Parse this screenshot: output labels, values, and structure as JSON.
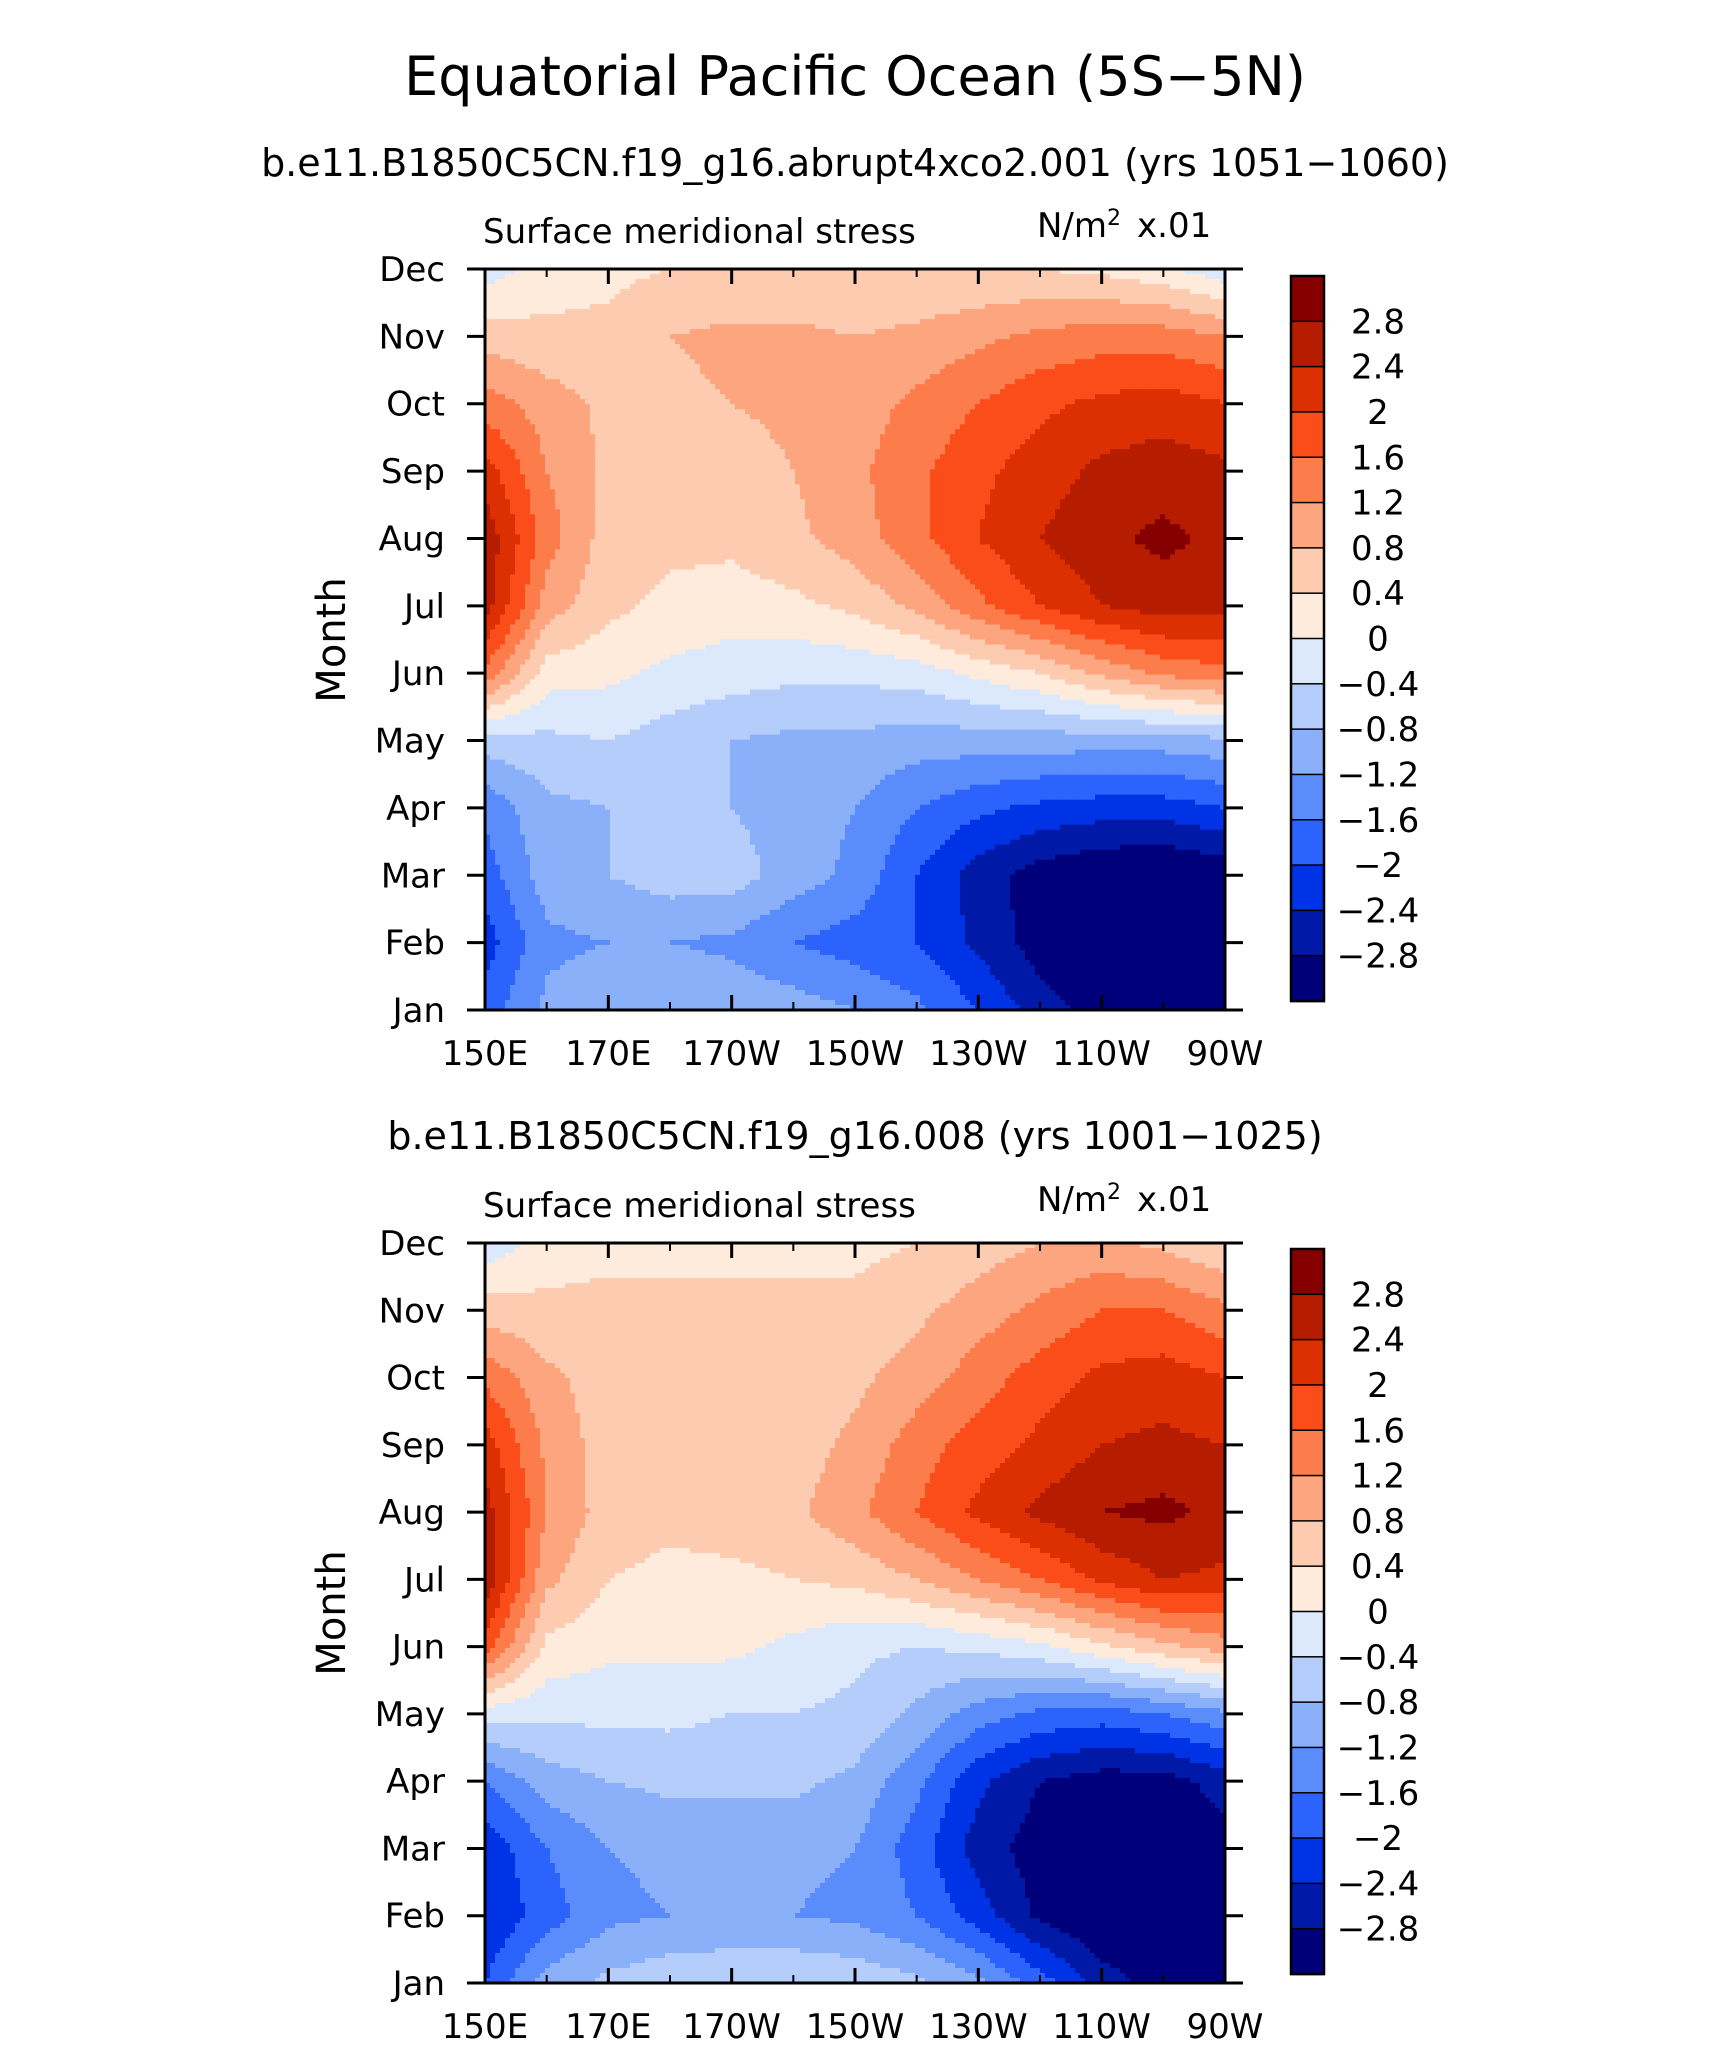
{
  "title": "Equatorial Pacific Ocean (5S−5N)",
  "colorbar": {
    "colors": [
      "#850000",
      "#b61c00",
      "#dc2f02",
      "#fb4d1a",
      "#fc7c4c",
      "#fca57e",
      "#fdcbb0",
      "#feebdc",
      "#dce9fc",
      "#b5cdfb",
      "#8bb0fa",
      "#5a8dfb",
      "#2d63fd",
      "#0032e6",
      "#001aa7",
      "#00007a"
    ],
    "labels": [
      "2.8",
      "2.4",
      "2",
      "1.6",
      "1.2",
      "0.8",
      "0.4",
      "0",
      "−0.4",
      "−0.8",
      "−1.2",
      "−1.6",
      "−2",
      "−2.4",
      "−2.8"
    ]
  },
  "chart_data": [
    {
      "type": "heatmap",
      "subtitle": "b.e11.B1850C5CN.f19_g16.abrupt4xco2.001 (yrs 1051−1060)",
      "left_label": "Surface meridional stress",
      "right_label": "N/m",
      "right_sup": "2",
      "right_scale": "x.01",
      "ylabel": "Month",
      "x_ticks": [
        "150E",
        "170E",
        "170W",
        "150W",
        "130W",
        "110W",
        "90W"
      ],
      "y_ticks": [
        "Jan",
        "Feb",
        "Mar",
        "Apr",
        "May",
        "Jun",
        "Jul",
        "Aug",
        "Sep",
        "Oct",
        "Nov",
        "Dec"
      ],
      "contour_levels": [
        -2.8,
        -2.4,
        -2,
        -1.6,
        -1.2,
        -0.8,
        -0.4,
        0,
        0.4,
        0.8,
        1.2,
        1.6,
        2,
        2.4,
        2.8
      ],
      "longitudes": [
        150,
        160,
        170,
        180,
        190,
        200,
        210,
        220,
        230,
        240,
        250,
        260,
        270
      ],
      "months": [
        "Jan",
        "Feb",
        "Mar",
        "Apr",
        "May",
        "Jun",
        "Jul",
        "Aug",
        "Sep",
        "Oct",
        "Nov",
        "Dec"
      ],
      "values": [
        [
          -1.8,
          -1.1,
          -0.9,
          -0.8,
          -0.9,
          -1.0,
          -1.2,
          -1.5,
          -2.0,
          -2.6,
          -3.0,
          -3.2,
          -3.1
        ],
        [
          -2.2,
          -1.3,
          -1.2,
          -1.2,
          -1.3,
          -1.6,
          -1.8,
          -2.0,
          -2.5,
          -3.0,
          -3.2,
          -3.3,
          -3.1
        ],
        [
          -1.8,
          -1.0,
          -0.8,
          -0.6,
          -0.6,
          -1.0,
          -1.3,
          -2.0,
          -2.6,
          -3.0,
          -3.2,
          -3.3,
          -3.1
        ],
        [
          -1.5,
          -0.9,
          -0.8,
          -0.7,
          -0.8,
          -1.0,
          -1.2,
          -1.6,
          -1.9,
          -2.1,
          -2.2,
          -2.2,
          -2.0
        ],
        [
          -0.6,
          -0.5,
          -0.4,
          -0.6,
          -0.8,
          -0.9,
          -0.9,
          -1.0,
          -1.0,
          -1.0,
          -1.0,
          -1.0,
          -0.9
        ],
        [
          1.5,
          0.2,
          0.1,
          -0.1,
          -0.2,
          -0.3,
          -0.3,
          -0.2,
          0.1,
          0.4,
          0.9,
          1.3,
          1.5
        ],
        [
          2.6,
          1.0,
          0.5,
          0.3,
          0.2,
          0.3,
          0.5,
          0.9,
          1.5,
          2.0,
          2.4,
          2.6,
          2.5
        ],
        [
          2.7,
          1.4,
          0.6,
          0.5,
          0.5,
          0.7,
          1.0,
          1.5,
          2.0,
          2.4,
          2.7,
          2.9,
          2.7
        ],
        [
          2.2,
          1.2,
          0.7,
          0.6,
          0.6,
          0.8,
          1.1,
          1.5,
          1.9,
          2.2,
          2.5,
          2.6,
          2.5
        ],
        [
          1.4,
          1.0,
          0.7,
          0.7,
          0.8,
          0.9,
          1.0,
          1.3,
          1.6,
          1.9,
          2.1,
          2.2,
          2.0
        ],
        [
          0.6,
          0.5,
          0.5,
          0.8,
          0.9,
          0.9,
          0.8,
          0.9,
          1.1,
          1.3,
          1.4,
          1.4,
          1.2
        ],
        [
          -0.2,
          0.2,
          0.3,
          0.4,
          0.4,
          0.4,
          0.4,
          0.4,
          0.4,
          0.4,
          0.3,
          0.1,
          -0.3
        ]
      ]
    },
    {
      "type": "heatmap",
      "subtitle": "b.e11.B1850C5CN.f19_g16.008 (yrs 1001−1025)",
      "left_label": "Surface meridional stress",
      "right_label": "N/m",
      "right_sup": "2",
      "right_scale": "x.01",
      "ylabel": "Month",
      "x_ticks": [
        "150E",
        "170E",
        "170W",
        "150W",
        "130W",
        "110W",
        "90W"
      ],
      "y_ticks": [
        "Jan",
        "Feb",
        "Mar",
        "Apr",
        "May",
        "Jun",
        "Jul",
        "Aug",
        "Sep",
        "Oct",
        "Nov",
        "Dec"
      ],
      "contour_levels": [
        -2.8,
        -2.4,
        -2,
        -1.6,
        -1.2,
        -0.8,
        -0.4,
        0,
        0.4,
        0.8,
        1.2,
        1.6,
        2,
        2.4,
        2.8
      ],
      "longitudes": [
        150,
        160,
        170,
        180,
        190,
        200,
        210,
        220,
        230,
        240,
        250,
        260,
        270
      ],
      "months": [
        "Jan",
        "Feb",
        "Mar",
        "Apr",
        "May",
        "Jun",
        "Jul",
        "Aug",
        "Sep",
        "Oct",
        "Nov",
        "Dec"
      ],
      "values": [
        [
          -2.0,
          -1.0,
          -0.7,
          -0.5,
          -0.4,
          -0.4,
          -0.5,
          -0.7,
          -1.1,
          -1.8,
          -2.6,
          -3.0,
          -3.0
        ],
        [
          -2.4,
          -1.8,
          -1.3,
          -1.2,
          -1.2,
          -1.2,
          -1.3,
          -1.6,
          -2.2,
          -2.9,
          -3.2,
          -3.3,
          -3.0
        ],
        [
          -2.3,
          -1.6,
          -1.2,
          -1.1,
          -1.1,
          -1.1,
          -1.2,
          -1.8,
          -2.6,
          -3.0,
          -3.2,
          -3.3,
          -3.0
        ],
        [
          -1.6,
          -1.0,
          -0.8,
          -0.7,
          -0.7,
          -0.7,
          -0.9,
          -1.5,
          -2.3,
          -2.8,
          -3.0,
          -3.0,
          -2.6
        ],
        [
          -0.2,
          -0.3,
          -0.3,
          -0.3,
          -0.4,
          -0.4,
          -0.5,
          -0.9,
          -1.4,
          -1.7,
          -1.8,
          -1.6,
          -1.3
        ],
        [
          1.8,
          0.3,
          0.1,
          0.1,
          0.1,
          -0.1,
          -0.3,
          -0.4,
          -0.3,
          -0.1,
          0.3,
          0.7,
          1.0
        ],
        [
          2.7,
          0.9,
          0.4,
          0.3,
          0.3,
          0.4,
          0.5,
          0.8,
          1.2,
          1.6,
          2.1,
          2.4,
          2.3
        ],
        [
          2.6,
          1.2,
          0.6,
          0.5,
          0.6,
          0.7,
          1.1,
          1.6,
          2.1,
          2.5,
          2.8,
          2.9,
          2.7
        ],
        [
          2.2,
          1.1,
          0.6,
          0.5,
          0.5,
          0.6,
          0.9,
          1.4,
          1.8,
          2.1,
          2.4,
          2.5,
          2.4
        ],
        [
          1.5,
          0.9,
          0.6,
          0.5,
          0.5,
          0.5,
          0.7,
          1.0,
          1.4,
          1.8,
          2.1,
          2.2,
          2.0
        ],
        [
          0.6,
          0.5,
          0.5,
          0.5,
          0.5,
          0.5,
          0.5,
          0.7,
          1.0,
          1.3,
          1.6,
          1.6,
          1.3
        ],
        [
          -0.3,
          0.2,
          0.3,
          0.3,
          0.3,
          0.3,
          0.3,
          0.4,
          0.6,
          0.8,
          0.9,
          0.7,
          0.4
        ]
      ]
    }
  ]
}
